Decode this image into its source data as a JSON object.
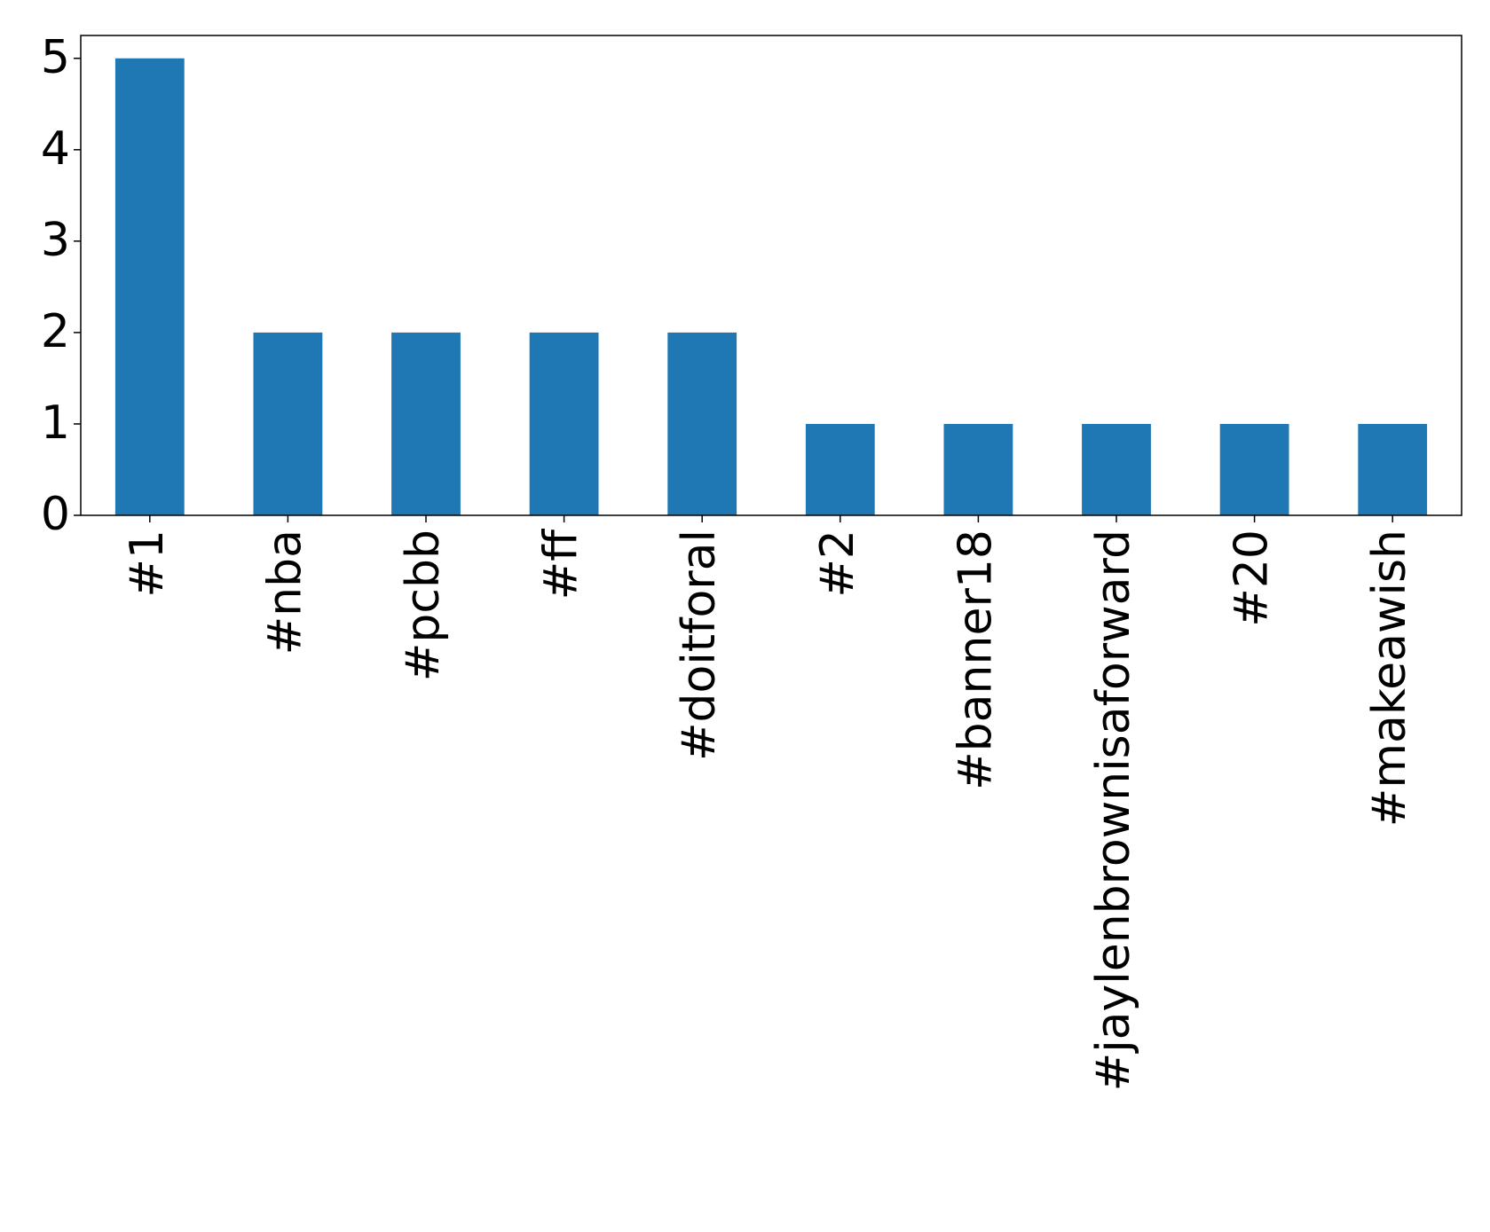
{
  "chart_data": {
    "type": "bar",
    "categories": [
      "#1",
      "#nba",
      "#pcbb",
      "#ff",
      "#doitforal",
      "#2",
      "#banner18",
      "#jaylenbrownisaforward",
      "#20",
      "#makeawish"
    ],
    "values": [
      5,
      2,
      2,
      2,
      2,
      1,
      1,
      1,
      1,
      1
    ],
    "color": "#1f77b4",
    "ylim": [
      0,
      5.25
    ],
    "yticks": [
      0,
      1,
      2,
      3,
      4,
      5
    ],
    "grid": false
  }
}
